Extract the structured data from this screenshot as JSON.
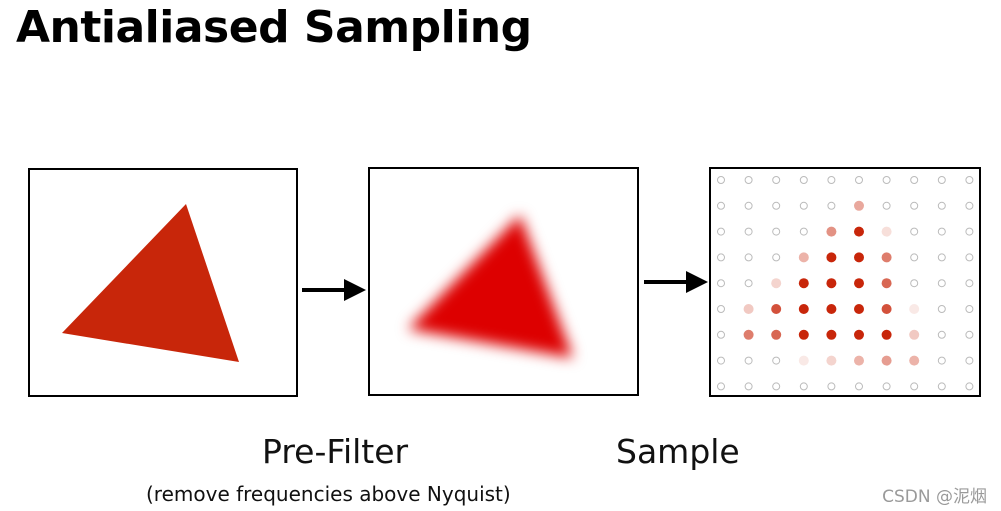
{
  "title": "Antialiased Sampling",
  "steps": {
    "prefilter": {
      "label": "Pre-Filter",
      "note": "(remove frequencies above Nyquist)"
    },
    "sample": {
      "label": "Sample"
    }
  },
  "colors": {
    "triangle": "#c8260a",
    "blurred_triangle": "#dd0000",
    "sample_dot": "#c8260a",
    "empty_sample": "#bbbbbb"
  },
  "sample_grid": {
    "rows": 9,
    "cols": 10,
    "levels": [
      [
        0,
        0,
        0,
        0,
        0,
        0,
        0,
        0,
        0,
        0
      ],
      [
        0,
        0,
        0,
        0,
        0,
        0.4,
        0,
        0,
        0,
        0
      ],
      [
        0,
        0,
        0,
        0,
        0.5,
        1,
        0.15,
        0,
        0,
        0
      ],
      [
        0,
        0,
        0,
        0.35,
        1,
        1,
        0.6,
        0,
        0,
        0
      ],
      [
        0,
        0,
        0.2,
        1,
        1,
        1,
        0.7,
        0,
        0,
        0
      ],
      [
        0,
        0.25,
        0.8,
        1,
        1,
        1,
        0.8,
        0.1,
        0,
        0
      ],
      [
        0,
        0.6,
        0.7,
        1,
        1,
        1,
        1,
        0.25,
        0,
        0
      ],
      [
        0,
        0,
        0,
        0.1,
        0.2,
        0.35,
        0.45,
        0.35,
        0,
        0
      ],
      [
        0,
        0,
        0,
        0,
        0,
        0,
        0,
        0,
        0,
        0
      ]
    ]
  },
  "watermark": "CSDN @泥烟"
}
